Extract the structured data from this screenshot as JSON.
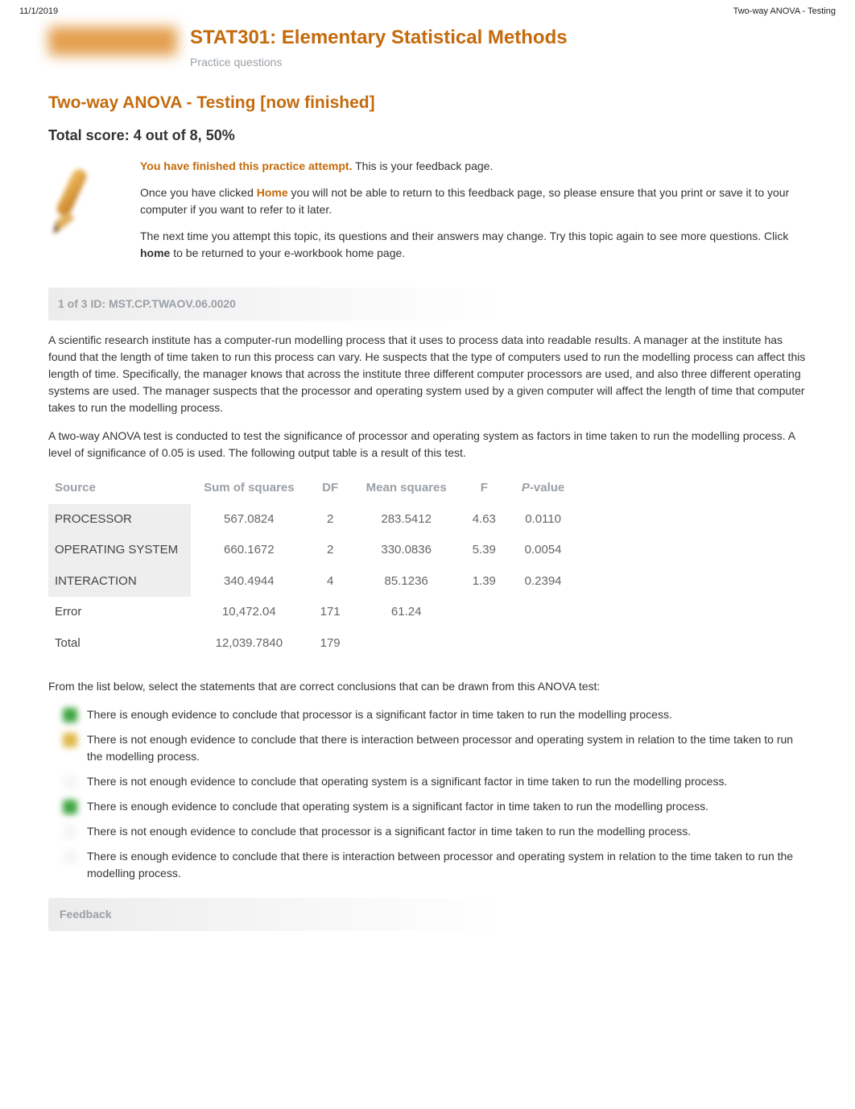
{
  "meta": {
    "date": "11/1/2019",
    "doc_title": "Two-way ANOVA - Testing"
  },
  "header": {
    "course_title": "STAT301: Elementary Statistical Methods",
    "subtitle": "Practice questions"
  },
  "page": {
    "heading": "Two-way ANOVA - Testing [now finished]",
    "score_line": "Total score: 4 out of 8, 50%"
  },
  "feedback_box": {
    "line1_emph": "You have finished this practice attempt.",
    "line1_tail": " This is your feedback page.",
    "line2_pre": "Once you have clicked ",
    "line2_home": "Home",
    "line2_post": " you will not be able to return to this feedback page, so please ensure that you print or save it to your computer if you want to refer to it later.",
    "line3_pre": "The next time you attempt this topic, its questions and their answers may change. Try this topic again to see more questions. Click ",
    "line3_bold": "home",
    "line3_post": " to be returned to your e-workbook home page."
  },
  "question": {
    "id_bar": "1 of 3   ID: MST.CP.TWAOV.06.0020",
    "para1": "A scientific research institute has a computer-run modelling process that it uses to process data into readable results. A manager at the institute has found that the length of time taken to run this process can vary. He suspects that the type of computers used to run the modelling process can affect this length of time. Specifically, the manager knows that across the institute three different computer processors are used, and also three different operating systems are used. The manager suspects that the processor and operating system used by a given computer will affect the length of time that computer takes to run the modelling process.",
    "para2": "A two-way ANOVA test is conducted to test the significance of processor and operating system as factors in time taken to run the modelling process. A level of significance of 0.05 is used. The following output table is a result of this test.",
    "options_intro": "From the list below, select the statements that are correct conclusions that can be drawn from this ANOVA test:"
  },
  "anova": {
    "headers": {
      "source": "Source",
      "ss": "Sum of squares",
      "df": "DF",
      "ms": "Mean squares",
      "f": "F",
      "p": "P-value"
    },
    "rows": [
      {
        "source": "PROCESSOR",
        "factor": true,
        "ss": "567.0824",
        "df": "2",
        "ms": "283.5412",
        "f": "4.63",
        "p": "0.0110"
      },
      {
        "source": "OPERATING SYSTEM",
        "factor": true,
        "ss": "660.1672",
        "df": "2",
        "ms": "330.0836",
        "f": "5.39",
        "p": "0.0054"
      },
      {
        "source": "INTERACTION",
        "factor": true,
        "ss": "340.4944",
        "df": "4",
        "ms": "85.1236",
        "f": "1.39",
        "p": "0.2394"
      },
      {
        "source": "Error",
        "factor": false,
        "ss": "10,472.04",
        "df": "171",
        "ms": "61.24",
        "f": "",
        "p": ""
      },
      {
        "source": "Total",
        "factor": false,
        "ss": "12,039.7840",
        "df": "179",
        "ms": "",
        "f": "",
        "p": ""
      }
    ],
    "style": {
      "header_color": "#9aa0a6",
      "factor_bg": "#eeeeee",
      "num_color": "#656565",
      "font_size_pt": 15
    }
  },
  "options": [
    {
      "mark": "green",
      "text": "There is enough evidence to conclude that processor is a significant factor in time taken to run the modelling process."
    },
    {
      "mark": "yellow",
      "text": "There is not enough evidence to conclude that there is interaction between processor and operating system in relation to the time taken to run the modelling process."
    },
    {
      "mark": "empty",
      "text": "There is not enough evidence to conclude that operating system is a significant factor in time taken to run the modelling process."
    },
    {
      "mark": "green",
      "text": "There is enough evidence to conclude that operating system is a significant factor in time taken to run the modelling process."
    },
    {
      "mark": "empty",
      "text": "There is not enough evidence to conclude that processor is a significant factor in time taken to run the modelling process."
    },
    {
      "mark": "empty",
      "text": "There is enough evidence to conclude that there is interaction between processor and operating system in relation to the time taken to run the modelling process."
    }
  ],
  "feedback_bar": "Feedback",
  "colors": {
    "accent_orange": "#c46a0b",
    "muted_grey": "#9aa0a6",
    "body_text": "#333333",
    "bar_bg_start": "#ececec"
  }
}
